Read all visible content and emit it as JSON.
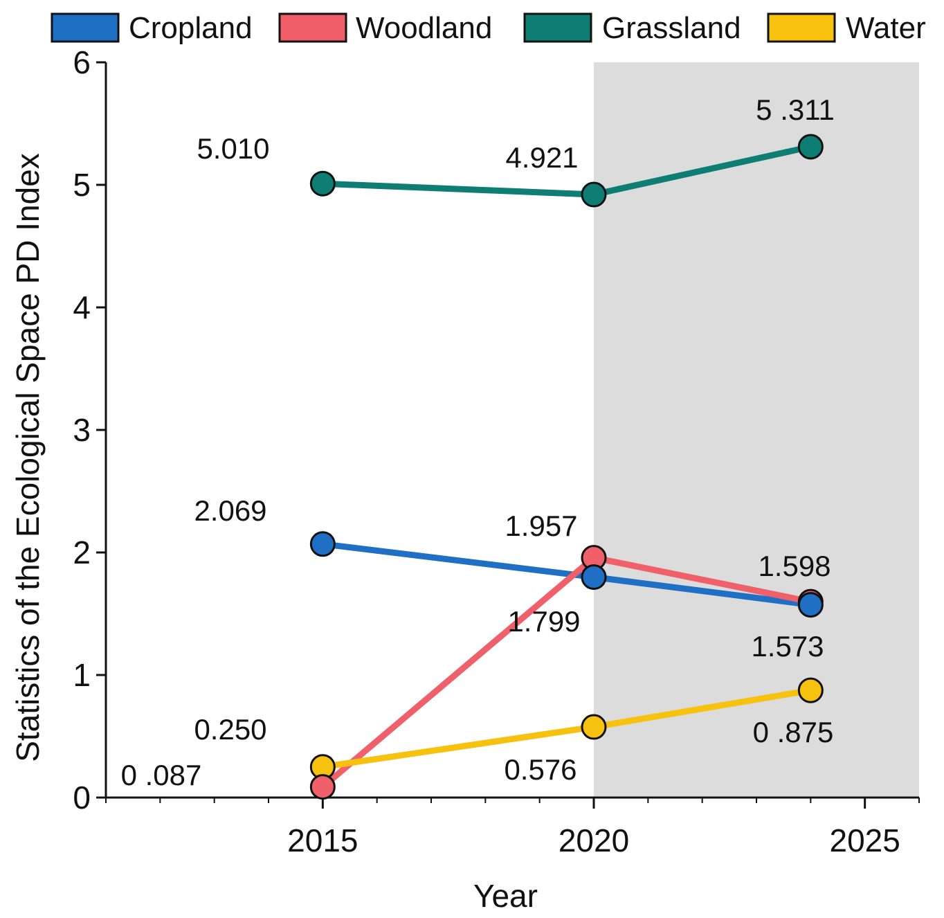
{
  "chart_data": {
    "type": "line",
    "title": "",
    "xlabel": "Year",
    "ylabel": "Statistics of the Ecological Space PD Index",
    "xlim": [
      2011,
      2026
    ],
    "ylim": [
      0,
      6
    ],
    "x_ticks": [
      "2015",
      "2020",
      "2025"
    ],
    "y_ticks": [
      "0",
      "1",
      "2",
      "3",
      "4",
      "5",
      "6"
    ],
    "shaded_region": {
      "from_x": 2020,
      "to_x": 2026,
      "color": "#dcdcdc"
    },
    "legend_placement": "top",
    "x": [
      2015,
      2020,
      2024
    ],
    "series": [
      {
        "name": "Cropland",
        "color": "#1f6fc5",
        "values": [
          2.069,
          1.799,
          1.573
        ],
        "labels": [
          "2.069",
          "1.799",
          "1.573"
        ]
      },
      {
        "name": "Woodland",
        "color": "#f0606a",
        "values": [
          0.087,
          1.957,
          1.598
        ],
        "labels": [
          "0 .087",
          "1.957",
          "1.598"
        ]
      },
      {
        "name": "Grassland",
        "color": "#0e7d74",
        "values": [
          5.01,
          4.921,
          5.311
        ],
        "labels": [
          "5.010",
          "4.921",
          "5 .311"
        ]
      },
      {
        "name": "Water",
        "color": "#f7c20f",
        "values": [
          0.25,
          0.576,
          0.875
        ],
        "labels": [
          "0.250",
          "0.576",
          "0 .875"
        ]
      }
    ]
  }
}
